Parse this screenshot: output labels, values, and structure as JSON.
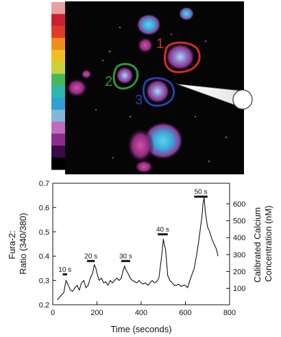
{
  "figure": {
    "roi_labels": [
      {
        "label": "1",
        "color": "#d92b2b"
      },
      {
        "label": "2",
        "color": "#2e9a34"
      },
      {
        "label": "3",
        "color": "#2a3fb0"
      }
    ],
    "colorbar": [
      "#000000",
      "#3a0a4a",
      "#8a2d8a",
      "#c06bc0",
      "#7fb8d8",
      "#2f9fd4",
      "#31b5b0",
      "#44b85a",
      "#c8d23a",
      "#f0c020",
      "#ef8d1e",
      "#e23a2a",
      "#cc2030",
      "#e9a0a0"
    ]
  },
  "chart_data": {
    "type": "line",
    "title": "",
    "xlabel": "Time (seconds)",
    "ylabel": [
      "Fura-2:",
      "Ratio (340/380)"
    ],
    "y2label": [
      "Calibrated Calcium",
      "Concentration (nM)"
    ],
    "xlim": [
      0,
      800
    ],
    "ylim": [
      0.2,
      0.7
    ],
    "xticks": [
      0,
      200,
      400,
      600,
      800
    ],
    "yticks": [
      0.2,
      0.3,
      0.4,
      0.5,
      0.6,
      0.7
    ],
    "y2ticks": [
      {
        "label": "100",
        "ratio": 0.2672
      },
      {
        "label": "200",
        "ratio": 0.3368
      },
      {
        "label": "300",
        "ratio": 0.4064
      },
      {
        "label": "400",
        "ratio": 0.4762
      },
      {
        "label": "500",
        "ratio": 0.5457
      },
      {
        "label": "600",
        "ratio": 0.6154
      }
    ],
    "grid": false,
    "legend": "none",
    "line_color": "#111111",
    "series": [
      {
        "x": [
          20,
          30,
          40,
          50,
          60,
          70,
          80,
          90,
          100,
          110,
          120,
          130,
          140,
          150,
          160,
          170,
          180,
          188,
          195,
          200,
          210,
          220,
          230,
          240,
          250,
          260,
          270,
          280,
          290,
          300,
          310,
          318,
          325,
          330,
          340,
          350,
          360,
          370,
          380,
          390,
          400,
          410,
          420,
          430,
          440,
          450,
          460,
          470,
          480,
          490,
          495,
          500,
          505,
          510,
          520,
          530,
          540,
          550,
          560,
          570,
          580,
          590,
          600,
          610,
          620,
          630,
          640,
          650,
          660,
          670,
          675,
          680,
          685,
          690,
          700,
          710,
          720,
          730,
          740,
          748
        ],
        "y": [
          0.22,
          0.23,
          0.24,
          0.25,
          0.3,
          0.28,
          0.26,
          0.255,
          0.27,
          0.28,
          0.26,
          0.29,
          0.3,
          0.27,
          0.28,
          0.31,
          0.33,
          0.365,
          0.35,
          0.33,
          0.3,
          0.31,
          0.29,
          0.295,
          0.28,
          0.3,
          0.29,
          0.3,
          0.31,
          0.3,
          0.31,
          0.34,
          0.36,
          0.345,
          0.33,
          0.31,
          0.3,
          0.295,
          0.29,
          0.3,
          0.29,
          0.285,
          0.29,
          0.28,
          0.29,
          0.3,
          0.29,
          0.295,
          0.31,
          0.38,
          0.42,
          0.47,
          0.445,
          0.43,
          0.32,
          0.3,
          0.29,
          0.28,
          0.28,
          0.285,
          0.275,
          0.28,
          0.28,
          0.27,
          0.3,
          0.325,
          0.35,
          0.4,
          0.46,
          0.53,
          0.565,
          0.62,
          0.64,
          0.585,
          0.52,
          0.5,
          0.47,
          0.45,
          0.43,
          0.4
        ]
      }
    ],
    "stimulus_bars": [
      {
        "label": "10 s",
        "x0": 45,
        "x1": 65,
        "y": 0.325
      },
      {
        "label": "20 s",
        "x0": 155,
        "x1": 190,
        "y": 0.38
      },
      {
        "label": "30 s",
        "x0": 310,
        "x1": 350,
        "y": 0.38
      },
      {
        "label": "40 s",
        "x0": 475,
        "x1": 520,
        "y": 0.49
      },
      {
        "label": "50 s",
        "x0": 640,
        "x1": 700,
        "y": 0.645
      }
    ]
  }
}
